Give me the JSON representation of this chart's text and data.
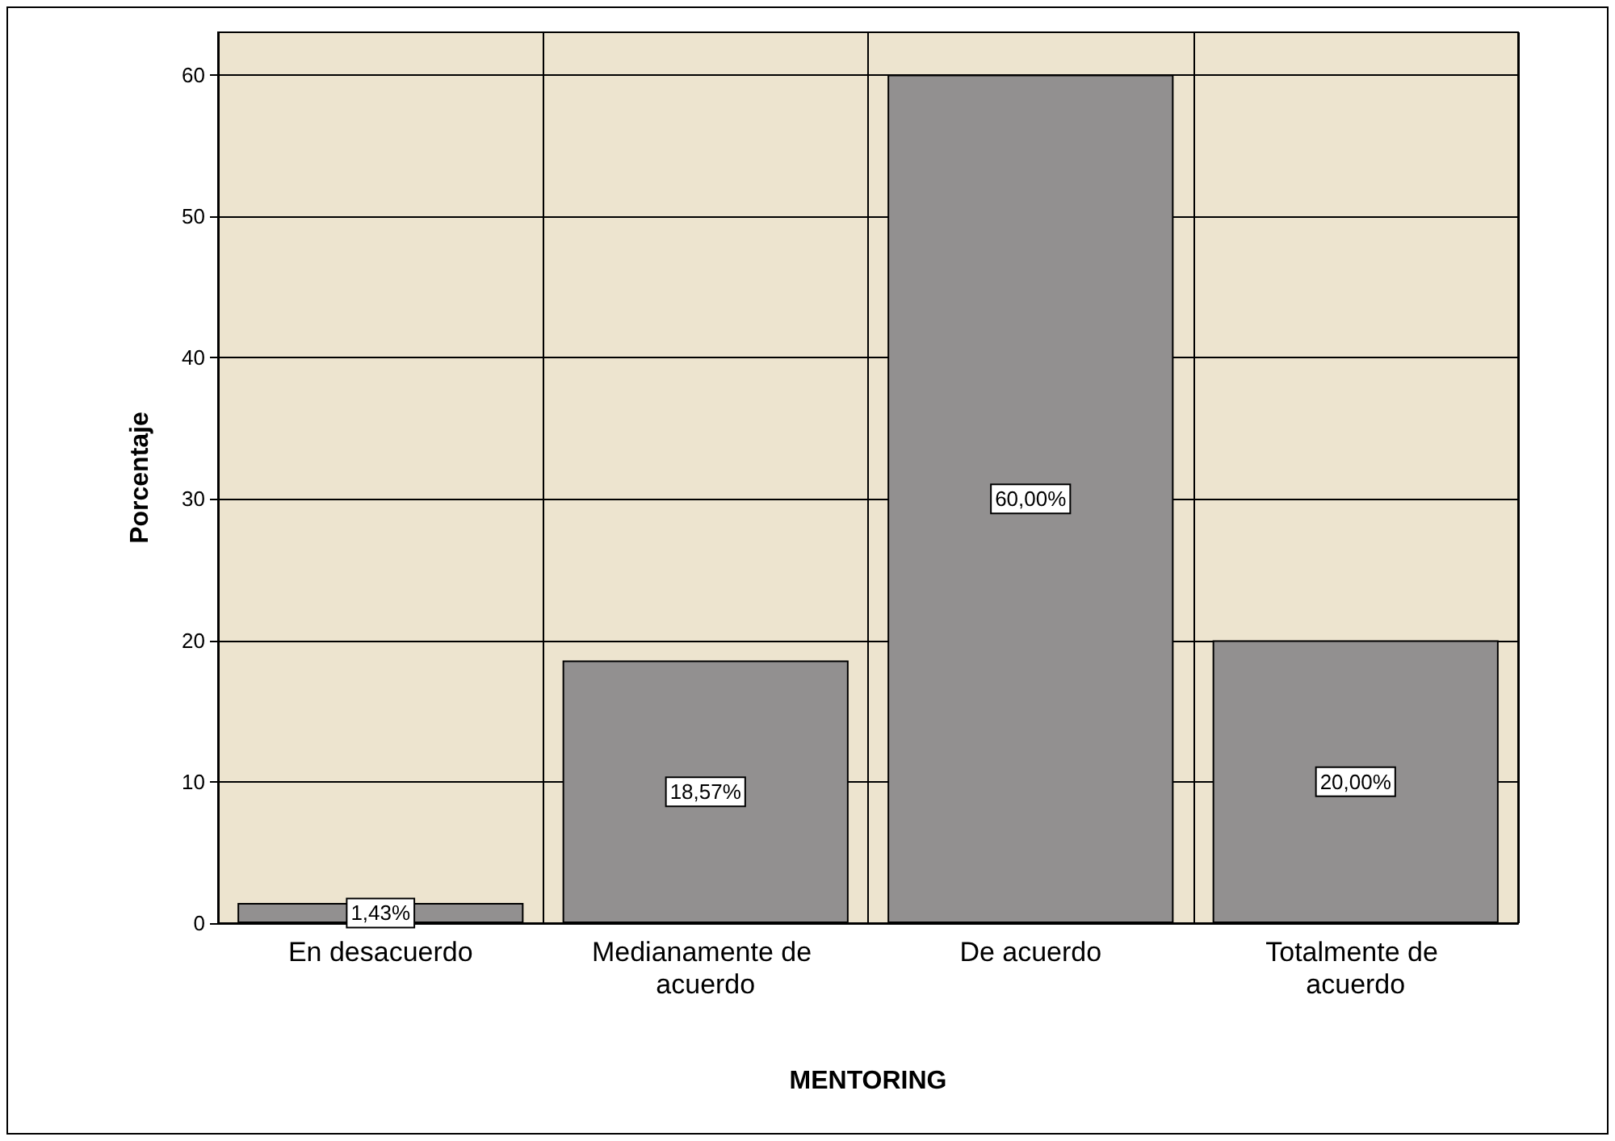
{
  "chart_data": {
    "type": "bar",
    "xlabel": "MENTORING",
    "ylabel": "Porcentaje",
    "categories": [
      "En desacuerdo",
      "Medianamente de acuerdo",
      "De acuerdo",
      "Totalmente de acuerdo"
    ],
    "values": [
      1.43,
      18.57,
      60.0,
      20.0
    ],
    "value_labels": [
      "1,43%",
      "18,57%",
      "60,00%",
      "20,00%"
    ],
    "color": "#929090",
    "ylim": [
      0,
      63
    ],
    "yticks": [
      0,
      10,
      20,
      30,
      40,
      50,
      60
    ],
    "grid": true
  }
}
